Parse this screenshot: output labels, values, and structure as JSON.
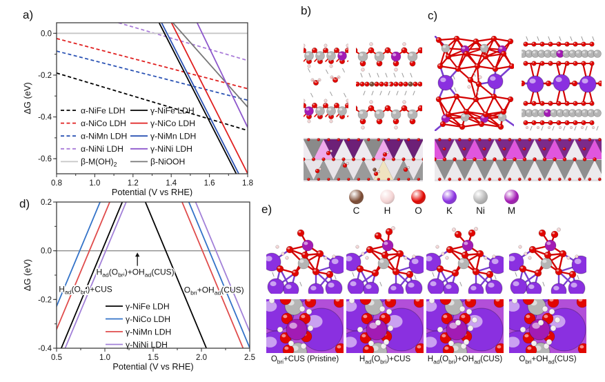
{
  "panels": {
    "a": "a)",
    "b": "b)",
    "c": "c)",
    "d": "d)",
    "e": "e)"
  },
  "atom_legend": [
    {
      "symbol": "C",
      "color": "#7b4a32"
    },
    {
      "symbol": "H",
      "color": "#f4d4d4"
    },
    {
      "symbol": "O",
      "color": "#e10600"
    },
    {
      "symbol": "K",
      "color": "#8a30e0"
    },
    {
      "symbol": "Ni",
      "color": "#b5b5b5"
    },
    {
      "symbol": "M",
      "color": "#a21bb4"
    }
  ],
  "structures": {
    "b": {
      "views": [
        "alpha-LDH-side-view-1",
        "alpha-LDH-side-view-2",
        "alpha-LDH-top-view"
      ]
    },
    "c": {
      "views": [
        "gamma-LDH-side-view-1",
        "gamma-LDH-side-view-2",
        "gamma-LDH-top-view"
      ]
    },
    "e": {
      "captions": [
        "O_{bri}+CUS (Pristine)",
        "H_{ad}(O_{bri})+CUS",
        "H_{ad}(O_{bri})+OH_{ad}(CUS)",
        "O_{bri}+OH_{ad}(CUS)"
      ]
    }
  },
  "chart_data": [
    {
      "type": "line",
      "panel": "a",
      "xlabel": "Potential (V vs RHE)",
      "ylabel": "ΔG (eV)",
      "xlim": [
        0.8,
        1.8
      ],
      "ylim": [
        -0.672,
        0.0505
      ],
      "xticks": [
        0.8,
        1.0,
        1.2,
        1.4,
        1.6,
        1.8
      ],
      "yticks": [
        0.0,
        -0.2,
        -0.4,
        -0.6
      ],
      "xminor": 0.1,
      "yminor": 0.1,
      "grid": false,
      "legend_position": "inside lower-left",
      "series": [
        {
          "name": "α-NiFe LDH",
          "color": "#000000",
          "dash": true,
          "segments": [
            [
              [
                0.8,
                -0.19
              ],
              [
                1.8,
                -0.465
              ]
            ]
          ]
        },
        {
          "name": "α-NiCo LDH",
          "color": "#e01f1f",
          "dash": true,
          "segments": [
            [
              [
                0.8,
                -0.025
              ],
              [
                1.8,
                -0.265
              ]
            ]
          ]
        },
        {
          "name": "α-NiMn LDH",
          "color": "#2a52b4",
          "dash": true,
          "segments": [
            [
              [
                0.8,
                -0.085
              ],
              [
                1.8,
                -0.32
              ]
            ]
          ]
        },
        {
          "name": "α-NiNi LDH",
          "color": "#a87ad8",
          "dash": true,
          "segments": [
            [
              [
                0.8,
                0.137
              ],
              [
                1.8,
                -0.13
              ]
            ]
          ]
        },
        {
          "name": "β-M(OH)_{2}",
          "color": "#c6c6c6",
          "dash": false,
          "segments": [
            [
              [
                0.8,
                0.0
              ],
              [
                1.8,
                0.0
              ]
            ]
          ]
        },
        {
          "name": "γ-NiFe LDH",
          "color": "#000000",
          "dash": false,
          "segments": [
            [
              [
                1.32,
                0.08
              ],
              [
                1.756,
                -0.7
              ]
            ]
          ]
        },
        {
          "name": "γ-NiMn LDH",
          "color": "#2a52b4",
          "dash": false,
          "segments": [
            [
              [
                1.333,
                0.08
              ],
              [
                1.769,
                -0.7
              ]
            ]
          ]
        },
        {
          "name": "γ-NiCo LDH",
          "color": "#e01f1f",
          "dash": false,
          "segments": [
            [
              [
                1.385,
                0.08
              ],
              [
                1.816,
                -0.7
              ]
            ]
          ]
        },
        {
          "name": "β-NiOOH",
          "color": "#787878",
          "dash": false,
          "segments": [
            [
              [
                1.38,
                0.08
              ],
              [
                1.84,
                -0.394
              ]
            ]
          ]
        },
        {
          "name": "γ-NiNi LDH",
          "color": "#8d57cc",
          "dash": false,
          "segments": [
            [
              [
                1.52,
                0.08
              ],
              [
                1.82,
                -0.488
              ]
            ]
          ]
        }
      ],
      "legend_rows": [
        [
          0,
          5
        ],
        [
          1,
          7
        ],
        [
          2,
          6
        ],
        [
          3,
          9
        ],
        [
          4,
          8
        ]
      ]
    },
    {
      "type": "line",
      "panel": "d",
      "xlabel": "Potential (V vs RHE)",
      "ylabel": "ΔG (eV)",
      "xlim": [
        0.5,
        2.5
      ],
      "ylim": [
        -0.4,
        0.2
      ],
      "xticks": [
        0.5,
        1.0,
        1.5,
        2.0,
        2.5
      ],
      "yticks": [
        0.2,
        0.0,
        -0.2,
        -0.4
      ],
      "xminor": 0.25,
      "yminor": 0.1,
      "grid": false,
      "legend_position": "inside lower-center",
      "zero_line": {
        "y": 0.0,
        "color": "#8c8c8c"
      },
      "series": [
        {
          "name": "γ-NiFe LDH",
          "color": "#000000",
          "dash": false,
          "segments": [
            [
              [
                0.496,
                -0.45
              ],
              [
                1.191,
                0.21
              ]
            ],
            [
              [
                1.409,
                0.21
              ],
              [
                2.104,
                -0.45
              ]
            ]
          ]
        },
        {
          "name": "γ-NiCo LDH",
          "color": "#3272c8",
          "dash": false,
          "segments": [
            [
              [
                0.266,
                -0.45
              ],
              [
                0.961,
                0.21
              ]
            ],
            [
              [
                1.859,
                0.21
              ],
              [
                2.554,
                -0.45
              ]
            ]
          ]
        },
        {
          "name": "γ-NiMn LDH",
          "color": "#e04b4b",
          "dash": false,
          "segments": [
            [
              [
                0.366,
                -0.45
              ],
              [
                1.061,
                0.21
              ]
            ],
            [
              [
                1.789,
                0.21
              ],
              [
                2.484,
                -0.45
              ]
            ]
          ]
        },
        {
          "name": "γ-NiNi LDH",
          "color": "#a280d8",
          "dash": false,
          "segments": [
            [
              [
                0.536,
                -0.45
              ],
              [
                1.231,
                0.21
              ]
            ],
            [
              [
                1.929,
                0.21
              ],
              [
                2.624,
                -0.45
              ]
            ]
          ]
        }
      ],
      "legend_rows": [
        [
          0
        ],
        [
          1
        ],
        [
          2
        ],
        [
          3
        ]
      ],
      "annotations": [
        {
          "text": "H_{ad}(O_{bri})+OH_{ad}(CUS)",
          "x": 1.315,
          "y": -0.098,
          "anchor": "middle"
        },
        {
          "text": "H_{ad}(O_{bri})+CUS",
          "x": 0.8,
          "y": -0.17,
          "anchor": "middle"
        },
        {
          "text": "O_{bri}+OH_{ad}(CUS)",
          "x": 2.13,
          "y": -0.172,
          "anchor": "middle"
        }
      ],
      "arrow": {
        "x": 1.337,
        "y_from": -0.062,
        "y_to": -0.01
      }
    }
  ]
}
